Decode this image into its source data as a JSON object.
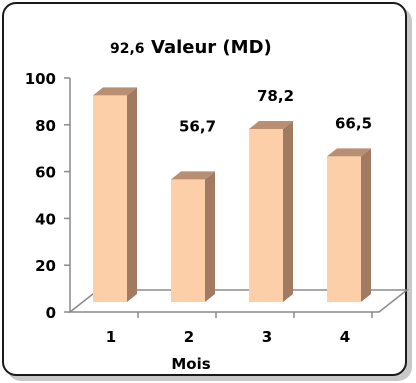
{
  "chart_data": {
    "type": "bar",
    "title": "Valeur (MD)",
    "xlabel": "Mois",
    "ylabel": "",
    "categories": [
      "1",
      "2",
      "3",
      "4"
    ],
    "values": [
      92.6,
      56.7,
      78.2,
      66.5
    ],
    "data_labels": [
      "92,6",
      "56,7",
      "78,2",
      "66,5"
    ],
    "ylim": [
      0,
      100
    ],
    "yticks": [
      "0",
      "20",
      "40",
      "60",
      "80",
      "100"
    ],
    "grid": false,
    "legend": "none",
    "colors": {
      "bar_front": "#fccfa8",
      "bar_side": "#a27a61",
      "bar_top": "#b88f73",
      "axis": "#8a8a8a",
      "frame": "#1a1a1a"
    }
  }
}
